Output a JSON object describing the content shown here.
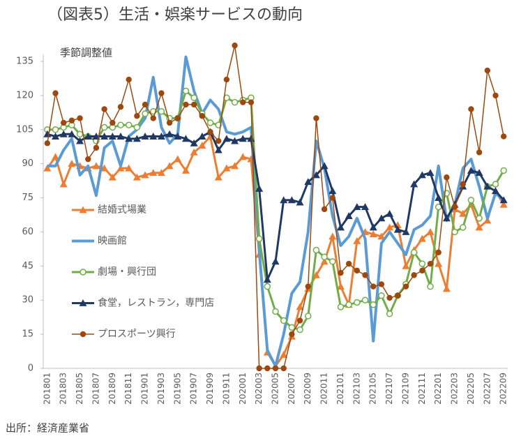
{
  "chart_data": {
    "type": "line",
    "title": "（図表5）生活・娯楽サービスの動向",
    "annotation": "季節調整値",
    "source": "出所：経済産業省",
    "categories": [
      "201801",
      null,
      "201803",
      null,
      "201805",
      null,
      "201807",
      null,
      "201809",
      null,
      "201811",
      null,
      "201901",
      null,
      "201903",
      null,
      "201905",
      null,
      "201907",
      null,
      "201909",
      null,
      "201911",
      null,
      "202001",
      null,
      "202003",
      null,
      "202005",
      null,
      "202007",
      null,
      "202009",
      null,
      "202011",
      null,
      "202101",
      null,
      "202103",
      null,
      "202105",
      null,
      "202107",
      null,
      "202109",
      null,
      "202111",
      null,
      "202201",
      null,
      "202203",
      null,
      "202205",
      null,
      "202207",
      null,
      "202209"
    ],
    "ylim": [
      0,
      135
    ],
    "yticks": [
      0,
      15,
      30,
      45,
      60,
      75,
      90,
      105,
      120,
      135
    ],
    "grid": false,
    "series": [
      {
        "name": "結婚式場業",
        "color": "#ed7d31",
        "marker": "triangle",
        "line_width": 3,
        "values": [
          88,
          93,
          81,
          90,
          89,
          88,
          89,
          88,
          84,
          88,
          88,
          84,
          85,
          86,
          86,
          89,
          92,
          87,
          95,
          98,
          102,
          84,
          88,
          89,
          93,
          92,
          50,
          7,
          1,
          6,
          14,
          27,
          35,
          41,
          47,
          58,
          36,
          28,
          56,
          60,
          59,
          58,
          62,
          63,
          45,
          52,
          57,
          60,
          46,
          35,
          70,
          68,
          72,
          62,
          65,
          78,
          72
        ]
      },
      {
        "name": "映画館",
        "color": "#5b9bd5",
        "marker": "none",
        "line_width": 4,
        "values": [
          89,
          89,
          96,
          101,
          85,
          89,
          76,
          97,
          100,
          89,
          102,
          105,
          110,
          128,
          106,
          99,
          103,
          137,
          122,
          112,
          118,
          114,
          104,
          103,
          104,
          106,
          52,
          8,
          1,
          15,
          33,
          38,
          60,
          100,
          88,
          67,
          54,
          58,
          66,
          57,
          12,
          55,
          60,
          55,
          50,
          61,
          63,
          67,
          89,
          65,
          72,
          88,
          92,
          80,
          66,
          77,
          74
        ]
      },
      {
        "name": "劇場・興行団",
        "color": "#70ad47",
        "marker": "hollow-circle",
        "line_width": 3,
        "values": [
          105,
          105,
          106,
          107,
          103,
          102,
          100,
          106,
          106,
          107,
          107,
          106,
          112,
          113,
          113,
          110,
          110,
          122,
          119,
          112,
          108,
          107,
          119,
          117,
          118,
          119,
          57,
          36,
          25,
          21,
          18,
          17,
          23,
          52,
          49,
          47,
          27,
          28,
          29,
          30,
          28,
          32,
          24,
          32,
          37,
          51,
          46,
          36,
          71,
          77,
          60,
          62,
          74,
          66,
          80,
          81,
          87
        ]
      },
      {
        "name": "食堂，レストラン，専門店",
        "color": "#203864",
        "marker": "triangle",
        "line_width": 3,
        "values": [
          103,
          102,
          103,
          103,
          100,
          102,
          102,
          102,
          102,
          102,
          101,
          101,
          102,
          102,
          102,
          103,
          102,
          101,
          99,
          102,
          104,
          96,
          101,
          100,
          101,
          101,
          79,
          39,
          47,
          74,
          74,
          73,
          82,
          85,
          89,
          78,
          62,
          67,
          71,
          71,
          62,
          66,
          68,
          61,
          60,
          81,
          85,
          86,
          75,
          66,
          72,
          80,
          87,
          86,
          80,
          78,
          74
        ]
      },
      {
        "name": "プロスポーツ興行",
        "color": "#9e480e",
        "marker": "circle",
        "line_width": 1.5,
        "values": [
          99,
          121,
          108,
          109,
          110,
          92,
          97,
          114,
          108,
          115,
          127,
          111,
          116,
          110,
          121,
          108,
          110,
          116,
          116,
          111,
          104,
          100,
          127,
          142,
          117,
          117,
          0,
          0,
          0,
          0,
          15,
          21,
          36,
          110,
          70,
          75,
          42,
          46,
          43,
          41,
          36,
          37,
          31,
          32,
          36,
          41,
          43,
          46,
          51,
          84,
          71,
          81,
          114,
          95,
          131,
          120,
          102
        ]
      }
    ]
  }
}
